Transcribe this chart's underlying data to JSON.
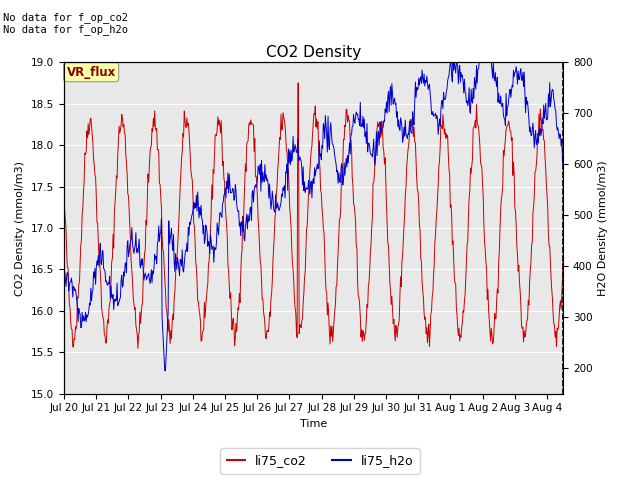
{
  "title": "CO2 Density",
  "xlabel": "Time",
  "ylabel_left": "CO2 Density (mmol/m3)",
  "ylabel_right": "H2O Density (mmol/m3)",
  "ylim_left": [
    15.0,
    19.0
  ],
  "ylim_right": [
    150,
    800
  ],
  "annotation_text": "No data for f_op_co2\nNo data for f_op_h2o",
  "vr_flux_label": "VR_flux",
  "legend_entries": [
    "li75_co2",
    "li75_h2o"
  ],
  "legend_colors": [
    "#cc0000",
    "#0000cc"
  ],
  "background_color": "#e8e8e8",
  "grid_color": "#ffffff",
  "title_fontsize": 11,
  "axis_fontsize": 8,
  "tick_fontsize": 7.5,
  "annot_fontsize": 7.5
}
